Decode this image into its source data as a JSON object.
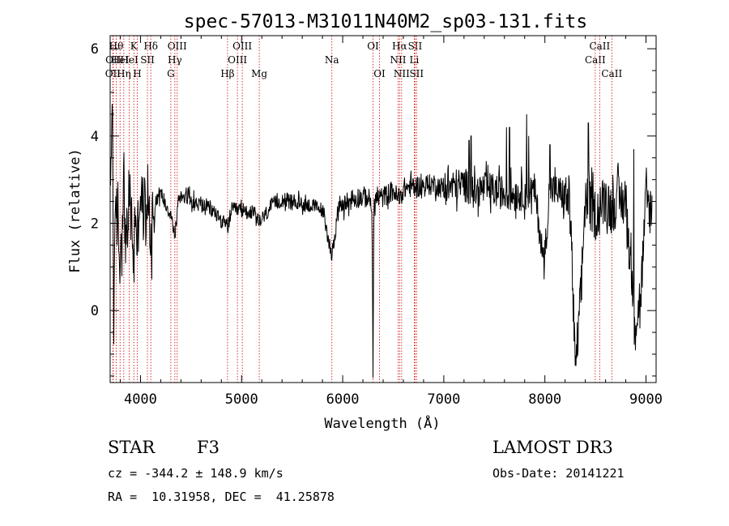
{
  "chart_data": {
    "type": "line",
    "title": "spec-57013-M31011N40M2_sp03-131.fits",
    "xlabel": "Wavelength (Å)",
    "ylabel": "Flux (relative)",
    "xlim": [
      3700,
      9100
    ],
    "ylim": [
      -1.65,
      6.3
    ],
    "xticks": [
      4000,
      5000,
      6000,
      7000,
      8000,
      9000
    ],
    "xtick_labels": [
      "4000",
      "5000",
      "6000",
      "7000",
      "8000",
      "9000"
    ],
    "yticks": [
      0,
      2,
      4,
      6
    ],
    "ytick_labels": [
      "0",
      "2",
      "4",
      "6"
    ],
    "spectrum": {
      "name": "flux",
      "color": "#000000",
      "anchors": [
        [
          3700,
          2.2
        ],
        [
          3720,
          5.05
        ],
        [
          3735,
          0.3
        ],
        [
          3760,
          2.4
        ],
        [
          3800,
          1.1
        ],
        [
          3830,
          2.9
        ],
        [
          3860,
          1.4
        ],
        [
          3890,
          2.7
        ],
        [
          3920,
          1.7
        ],
        [
          3935,
          1.0
        ],
        [
          3950,
          2.6
        ],
        [
          3968,
          1.4
        ],
        [
          3990,
          2.7
        ],
        [
          4030,
          2.3
        ],
        [
          4080,
          2.6
        ],
        [
          4102,
          1.6
        ],
        [
          4130,
          2.5
        ],
        [
          4200,
          2.7
        ],
        [
          4300,
          2.2
        ],
        [
          4340,
          1.7
        ],
        [
          4380,
          2.6
        ],
        [
          4450,
          2.65
        ],
        [
          4550,
          2.45
        ],
        [
          4650,
          2.4
        ],
        [
          4750,
          2.2
        ],
        [
          4861,
          1.9
        ],
        [
          4900,
          2.3
        ],
        [
          5000,
          2.3
        ],
        [
          5100,
          2.25
        ],
        [
          5175,
          2.0
        ],
        [
          5300,
          2.4
        ],
        [
          5400,
          2.55
        ],
        [
          5500,
          2.5
        ],
        [
          5600,
          2.45
        ],
        [
          5700,
          2.4
        ],
        [
          5800,
          2.3
        ],
        [
          5890,
          1.3
        ],
        [
          5910,
          1.5
        ],
        [
          5950,
          2.3
        ],
        [
          6050,
          2.5
        ],
        [
          6150,
          2.6
        ],
        [
          6250,
          2.6
        ],
        [
          6290,
          2.4
        ],
        [
          6300,
          -1.5
        ],
        [
          6310,
          2.55
        ],
        [
          6400,
          2.6
        ],
        [
          6500,
          2.75
        ],
        [
          6563,
          2.5
        ],
        [
          6600,
          2.8
        ],
        [
          6700,
          2.85
        ],
        [
          6800,
          2.85
        ],
        [
          6900,
          2.9
        ],
        [
          7000,
          2.8
        ],
        [
          7100,
          2.85
        ],
        [
          7200,
          2.9
        ],
        [
          7300,
          2.7
        ],
        [
          7400,
          2.8
        ],
        [
          7500,
          2.75
        ],
        [
          7600,
          2.7
        ],
        [
          7700,
          2.65
        ],
        [
          7800,
          2.7
        ],
        [
          7900,
          2.75
        ],
        [
          7990,
          1.05
        ],
        [
          8050,
          2.8
        ],
        [
          8150,
          2.7
        ],
        [
          8250,
          2.5
        ],
        [
          8300,
          -1.4
        ],
        [
          8350,
          0.1
        ],
        [
          8400,
          2.6
        ],
        [
          8498,
          2.2
        ],
        [
          8542,
          2.3
        ],
        [
          8600,
          2.6
        ],
        [
          8662,
          2.3
        ],
        [
          8700,
          2.5
        ],
        [
          8800,
          2.5
        ],
        [
          8850,
          1.0
        ],
        [
          8900,
          -0.25
        ],
        [
          8950,
          0.4
        ],
        [
          9000,
          2.5
        ],
        [
          9050,
          2.3
        ]
      ],
      "noise": [
        {
          "from": 3700,
          "to": 4150,
          "amp": 0.8
        },
        {
          "from": 4150,
          "to": 6000,
          "amp": 0.18
        },
        {
          "from": 6000,
          "to": 7000,
          "amp": 0.25
        },
        {
          "from": 7000,
          "to": 8200,
          "amp": 0.4
        },
        {
          "from": 8200,
          "to": 9100,
          "amp": 0.6
        }
      ],
      "spikes": [
        [
          7250,
          3.9
        ],
        [
          7270,
          4.0
        ],
        [
          7620,
          4.2
        ],
        [
          7650,
          4.2
        ],
        [
          7820,
          4.5
        ],
        [
          7840,
          4.0
        ],
        [
          8050,
          3.8
        ],
        [
          8430,
          4.3
        ],
        [
          8880,
          3.7
        ]
      ]
    },
    "lines": [
      {
        "wave": 3727,
        "label": "OII",
        "row": 3
      },
      {
        "wave": 3730,
        "label": "OII",
        "row": 2
      },
      {
        "wave": 3760,
        "label": "Hθ",
        "row": 1
      },
      {
        "wave": 3798,
        "label": "HeI",
        "row": 2
      },
      {
        "wave": 3835,
        "label": "Hη",
        "row": 3
      },
      {
        "wave": 3889,
        "label": "HeI",
        "row": 2
      },
      {
        "wave": 3934,
        "label": "K",
        "row": 1
      },
      {
        "wave": 3968,
        "label": "H",
        "row": 3
      },
      {
        "wave": 4069,
        "label": "SII",
        "row": 2
      },
      {
        "wave": 4102,
        "label": "Hδ",
        "row": 1
      },
      {
        "wave": 4300,
        "label": "G",
        "row": 3
      },
      {
        "wave": 4340,
        "label": "Hγ",
        "row": 2
      },
      {
        "wave": 4363,
        "label": "OIII",
        "row": 1
      },
      {
        "wave": 4861,
        "label": "Hβ",
        "row": 3
      },
      {
        "wave": 4959,
        "label": "OIII",
        "row": 2
      },
      {
        "wave": 5007,
        "label": "OIII",
        "row": 1
      },
      {
        "wave": 5175,
        "label": "Mg",
        "row": 3
      },
      {
        "wave": 5893,
        "label": "Na",
        "row": 2
      },
      {
        "wave": 6300,
        "label": "OI",
        "row": 1
      },
      {
        "wave": 6364,
        "label": "OI",
        "row": 3
      },
      {
        "wave": 6548,
        "label": "NII",
        "row": 2
      },
      {
        "wave": 6563,
        "label": "Hα",
        "row": 1
      },
      {
        "wave": 6583,
        "label": "NII",
        "row": 3
      },
      {
        "wave": 6708,
        "label": "Li",
        "row": 2
      },
      {
        "wave": 6716,
        "label": "SII",
        "row": 1
      },
      {
        "wave": 6731,
        "label": "SII",
        "row": 3
      },
      {
        "wave": 8498,
        "label": "CaII",
        "row": 2
      },
      {
        "wave": 8542,
        "label": "CaII",
        "row": 1
      },
      {
        "wave": 8662,
        "label": "CaII",
        "row": 3
      }
    ],
    "line_color": "#cc0000",
    "grid": false,
    "legend": "none"
  },
  "info": {
    "class_label": "STAR",
    "subclass": "F3",
    "survey": "LAMOST DR3",
    "redshift": "cz = -344.2 ± 148.9 km/s",
    "obs_date": "Obs-Date: 20141221",
    "coords": "RA =  10.31958, DEC =  41.25878"
  }
}
